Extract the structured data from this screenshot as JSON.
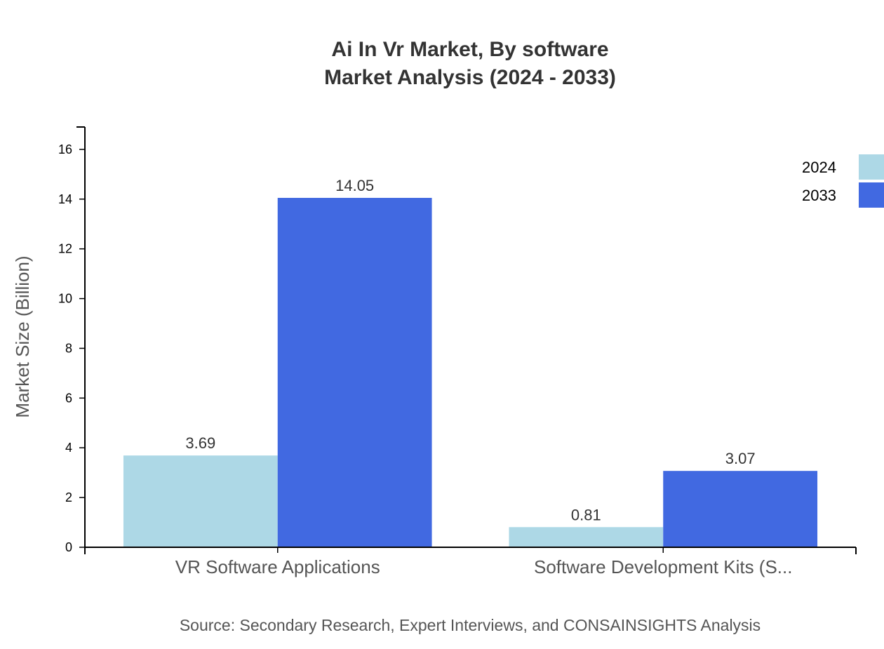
{
  "chart_data": {
    "type": "bar",
    "title": [
      "Ai In Vr Market, By software",
      "Market Analysis (2024 - 2033)"
    ],
    "xlabel": "",
    "ylabel": "Market Size (Billion)",
    "categories": [
      "VR Software Applications",
      "Software Development Kits (S..."
    ],
    "series": [
      {
        "name": "2024",
        "values": [
          3.69,
          0.81
        ],
        "color": "#add8e6"
      },
      {
        "name": "2033",
        "values": [
          14.05,
          3.07
        ],
        "color": "#4169e1"
      }
    ],
    "data_labels": [
      [
        "3.69",
        "0.81"
      ],
      [
        "14.05",
        "3.07"
      ]
    ],
    "ylim": [
      0,
      16.9
    ],
    "yticks": [
      0,
      2,
      4,
      6,
      8,
      10,
      12,
      14,
      16
    ],
    "grid": false,
    "legend": "top-right",
    "source": "Source: Secondary Research, Expert Interviews, and CONSAINSIGHTS Analysis"
  }
}
